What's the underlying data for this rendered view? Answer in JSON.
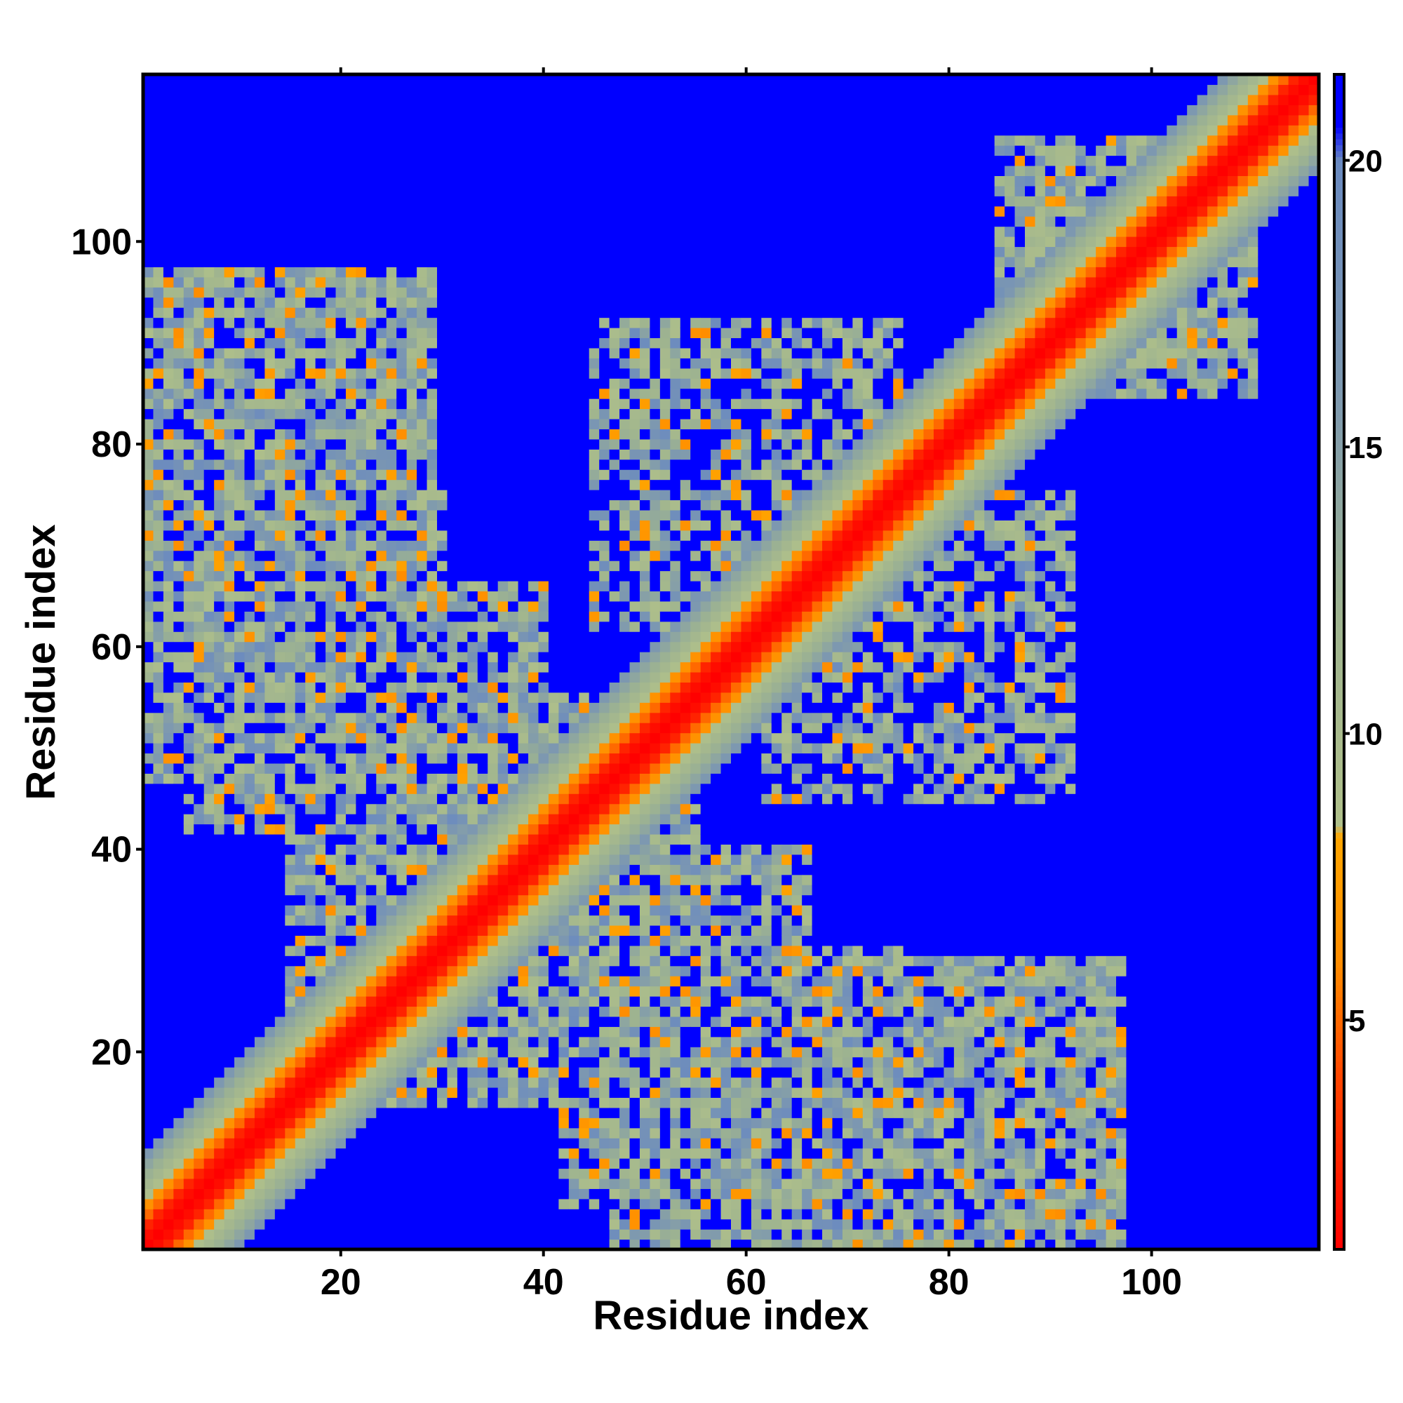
{
  "chart_data": {
    "type": "heatmap",
    "title": "",
    "xlabel": "Residue index",
    "ylabel": "Residue index",
    "x_range": [
      1,
      116
    ],
    "y_range": [
      1,
      116
    ],
    "x_ticks": [
      20,
      40,
      60,
      80,
      100
    ],
    "y_ticks": [
      20,
      40,
      60,
      80,
      100
    ],
    "grid": false,
    "colorbar": {
      "ticks": [
        5,
        10,
        15,
        20
      ],
      "range": [
        1,
        21.5
      ],
      "position": "right",
      "stops": [
        {
          "value": 1,
          "color": "#ff0000"
        },
        {
          "value": 4,
          "color": "#ff4500"
        },
        {
          "value": 6,
          "color": "#ff8c00"
        },
        {
          "value": 8.2,
          "color": "#ffa500"
        },
        {
          "value": 8.4,
          "color": "#b0c08a"
        },
        {
          "value": 12,
          "color": "#9fb48f"
        },
        {
          "value": 16,
          "color": "#7d98b0"
        },
        {
          "value": 20,
          "color": "#6a8ac0"
        },
        {
          "value": 20.6,
          "color": "#0000ff"
        },
        {
          "value": 21.5,
          "color": "#0000ff"
        }
      ]
    },
    "matrix": {
      "size": 116,
      "symmetric": true,
      "background_value": 21,
      "diagonal_band": {
        "width_residues": 10,
        "values_by_offset": [
          1,
          1.5,
          2.5,
          5,
          6.5,
          9,
          11,
          12.5,
          14,
          16
        ]
      },
      "contact_regions": [
        {
          "x": [
            1,
            29
          ],
          "y": [
            50,
            97
          ],
          "mean": 15,
          "density": 0.78
        },
        {
          "x": [
            5,
            40
          ],
          "y": [
            42,
            66
          ],
          "mean": 14,
          "density": 0.75
        },
        {
          "x": [
            15,
            55
          ],
          "y": [
            20,
            45
          ],
          "mean": 14,
          "density": 0.72
        },
        {
          "x": [
            47,
            75
          ],
          "y": [
            1,
            30
          ],
          "mean": 15,
          "density": 0.75
        },
        {
          "x": [
            65,
            97
          ],
          "y": [
            1,
            25
          ],
          "mean": 15,
          "density": 0.7
        },
        {
          "x": [
            45,
            75
          ],
          "y": [
            62,
            92
          ],
          "mean": 15,
          "density": 0.6
        },
        {
          "x": [
            62,
            90
          ],
          "y": [
            45,
            70
          ],
          "mean": 15,
          "density": 0.6
        },
        {
          "x": [
            85,
            110
          ],
          "y": [
            85,
            110
          ],
          "mean": 13,
          "density": 0.8
        }
      ]
    }
  }
}
